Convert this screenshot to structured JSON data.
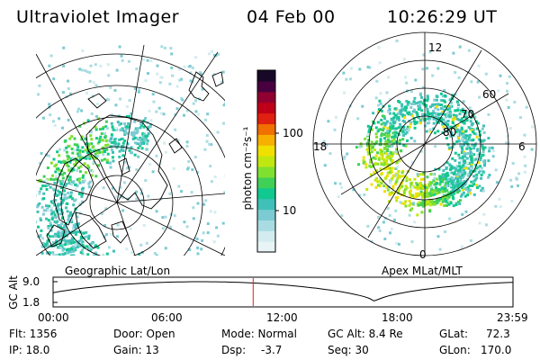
{
  "header": {
    "title": "Ultraviolet Imager",
    "date": "04 Feb 00",
    "time": "10:26:29 UT"
  },
  "geo_panel": {
    "label": "Geographic Lat/Lon"
  },
  "apex_panel": {
    "label": "Apex MLat/MLT",
    "lat_labels": [
      "60",
      "70",
      "80"
    ],
    "mlt_labels": [
      "12",
      "18",
      "6",
      "0"
    ]
  },
  "colorbar": {
    "unit": "photon cm⁻²s⁻¹",
    "ticks": [
      "100",
      "10"
    ],
    "colors": [
      "#e8f4f6",
      "#d2ecf0",
      "#a8dce2",
      "#7ccbd2",
      "#40c0b8",
      "#10c890",
      "#40d058",
      "#80e030",
      "#c0e810",
      "#f0e000",
      "#f8b000",
      "#f07000",
      "#e02010",
      "#c00018",
      "#900030",
      "#480040",
      "#180828"
    ]
  },
  "altitude_plot": {
    "ylabel": "GC Alt",
    "yticks": [
      "9.0",
      "1.8"
    ],
    "xticks": [
      "00:00",
      "06:00",
      "12:00",
      "18:00",
      "23:59"
    ],
    "current_time_hours": 10.44,
    "perigee_time_hours": 16.8
  },
  "info": {
    "flt": "Flt: 1356",
    "ip": "IP: 18.0",
    "door": "Door: Open",
    "gain": "Gain: 13",
    "mode": "Mode: Normal",
    "dsp_label": "Dsp:",
    "dsp_value": "-3.7",
    "gc_alt": "GC Alt: 8.4 Re",
    "seq": "Seq: 30",
    "glat_label": "GLat:",
    "glat_value": "72.3",
    "glon_label": "GLon:",
    "glon_value": "170.0"
  }
}
